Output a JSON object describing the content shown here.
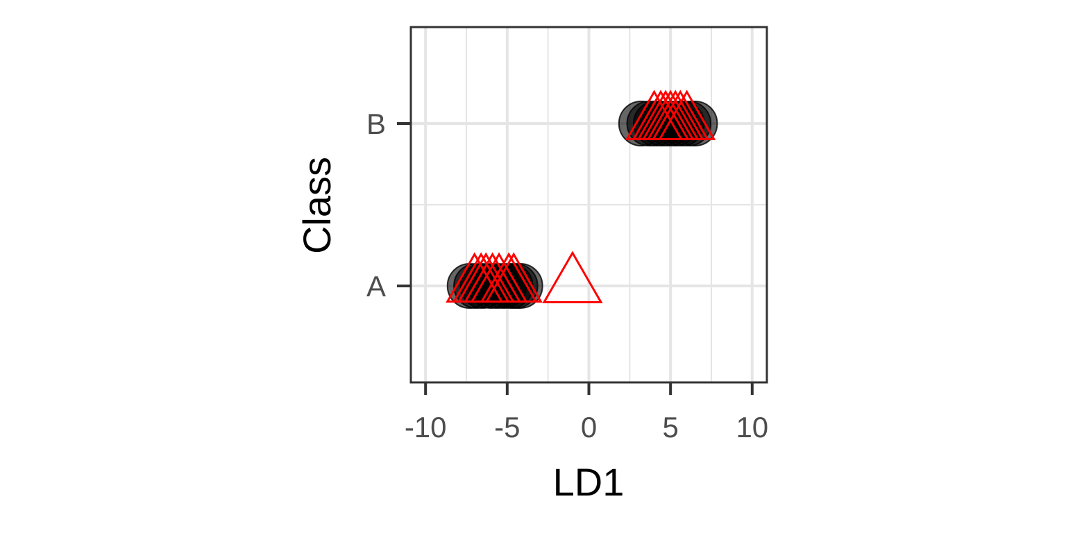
{
  "chart_data": {
    "type": "scatter",
    "title": "",
    "xlabel": "LD1",
    "ylabel": "Class",
    "xlim": [
      -10.9,
      10.9
    ],
    "x_ticks": [
      -10,
      -5,
      0,
      5,
      10
    ],
    "x_tick_labels": [
      "-10",
      "-5",
      "0",
      "5",
      "10"
    ],
    "categories": [
      "A",
      "B"
    ],
    "grid": true,
    "colors": {
      "circle_fill": "#000000",
      "circle_opacity": 0.6,
      "triangle_stroke": "#ff0000",
      "grid": "#e5e5e5",
      "panel_border": "#333333",
      "tick": "#333333"
    },
    "series": [
      {
        "marker": "circle",
        "points": [
          {
            "x": -7.3,
            "y": "A"
          },
          {
            "x": -6.9,
            "y": "A"
          },
          {
            "x": -6.5,
            "y": "A"
          },
          {
            "x": -6.0,
            "y": "A"
          },
          {
            "x": -5.6,
            "y": "A"
          },
          {
            "x": -5.2,
            "y": "A"
          },
          {
            "x": -4.8,
            "y": "A"
          },
          {
            "x": -4.5,
            "y": "A"
          },
          {
            "x": -4.2,
            "y": "A"
          },
          {
            "x": 3.2,
            "y": "B"
          },
          {
            "x": 3.7,
            "y": "B"
          },
          {
            "x": 4.1,
            "y": "B"
          },
          {
            "x": 4.5,
            "y": "B"
          },
          {
            "x": 4.9,
            "y": "B"
          },
          {
            "x": 5.3,
            "y": "B"
          },
          {
            "x": 5.7,
            "y": "B"
          },
          {
            "x": 6.1,
            "y": "B"
          },
          {
            "x": 6.5,
            "y": "B"
          }
        ]
      },
      {
        "marker": "triangle",
        "points": [
          {
            "x": -7.0,
            "y": "A"
          },
          {
            "x": -6.6,
            "y": "A"
          },
          {
            "x": -6.3,
            "y": "A"
          },
          {
            "x": -5.9,
            "y": "A"
          },
          {
            "x": -5.5,
            "y": "A"
          },
          {
            "x": -4.9,
            "y": "A"
          },
          {
            "x": -4.6,
            "y": "A"
          },
          {
            "x": -1.0,
            "y": "A",
            "large": true
          },
          {
            "x": 4.0,
            "y": "B"
          },
          {
            "x": 4.4,
            "y": "B"
          },
          {
            "x": 4.7,
            "y": "B"
          },
          {
            "x": 5.0,
            "y": "B"
          },
          {
            "x": 5.3,
            "y": "B"
          },
          {
            "x": 5.6,
            "y": "B"
          },
          {
            "x": 6.0,
            "y": "B"
          }
        ]
      }
    ]
  }
}
